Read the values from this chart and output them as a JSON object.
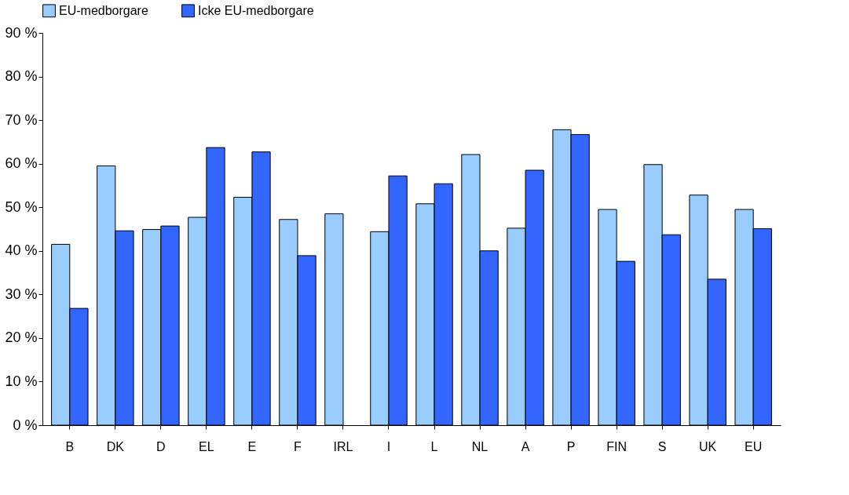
{
  "chart_data": {
    "type": "bar",
    "categories": [
      "B",
      "DK",
      "D",
      "EL",
      "E",
      "F",
      "IRL",
      "I",
      "L",
      "NL",
      "A",
      "P",
      "FIN",
      "S",
      "UK",
      "EU"
    ],
    "series": [
      {
        "name": "EU-medborgare",
        "color": "#99ccff",
        "values": [
          41.5,
          59.5,
          44.9,
          47.7,
          52.3,
          47.2,
          48.5,
          44.4,
          50.8,
          62.1,
          45.2,
          67.8,
          49.5,
          59.8,
          52.8,
          49.5
        ]
      },
      {
        "name": "Icke EU-medborgare",
        "color": "#3366ff",
        "values": [
          26.8,
          44.6,
          45.7,
          63.7,
          62.7,
          38.9,
          null,
          57.2,
          55.4,
          40.0,
          58.5,
          66.7,
          37.6,
          43.7,
          33.5,
          45.1
        ]
      }
    ],
    "ylim": [
      0,
      90
    ],
    "yticks": [
      {
        "value": 0,
        "label": "0 %"
      },
      {
        "value": 10,
        "label": "10 %"
      },
      {
        "value": 20,
        "label": "20 %"
      },
      {
        "value": 30,
        "label": "30 %"
      },
      {
        "value": 40,
        "label": "40 %"
      },
      {
        "value": 50,
        "label": "50 %"
      },
      {
        "value": 60,
        "label": "60 %"
      },
      {
        "value": 70,
        "label": "70 %"
      },
      {
        "value": 80,
        "label": "80 %"
      },
      {
        "value": 90,
        "label": "90 %"
      }
    ],
    "grid": false,
    "legend": "top"
  }
}
